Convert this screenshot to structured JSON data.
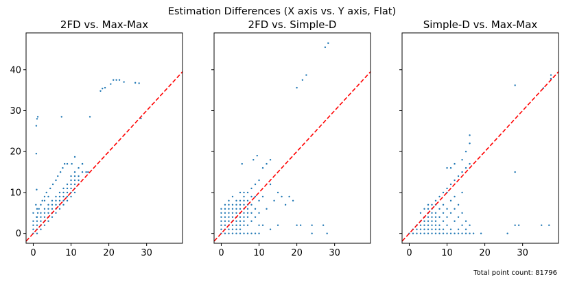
{
  "figure": {
    "suptitle": "Estimation Differences (X axis vs. Y axis, Flat)",
    "footnote": "Total point count: 81796",
    "colors": {
      "points": "#1f77b4",
      "diagonal": "#ff0000",
      "axes": "#000000"
    }
  },
  "chart_data": [
    {
      "type": "scatter",
      "title": "2FD vs. Max-Max",
      "xlim": [
        -1.9,
        39.5
      ],
      "ylim": [
        -2.4,
        49.0
      ],
      "xticks": [
        0,
        10,
        20,
        30
      ],
      "yticks": [
        0,
        10,
        20,
        30,
        40
      ],
      "show_y_tick_labels": true,
      "reference_line": "y = x (dashed)",
      "points": [
        [
          0,
          0
        ],
        [
          0,
          1
        ],
        [
          0,
          2
        ],
        [
          0,
          3
        ],
        [
          1,
          0
        ],
        [
          1,
          1
        ],
        [
          1,
          2
        ],
        [
          1,
          3
        ],
        [
          1,
          4
        ],
        [
          2,
          1
        ],
        [
          2,
          2
        ],
        [
          2,
          3
        ],
        [
          2,
          4
        ],
        [
          2,
          5
        ],
        [
          3,
          2
        ],
        [
          3,
          3
        ],
        [
          3,
          4
        ],
        [
          3,
          5
        ],
        [
          3,
          6
        ],
        [
          4,
          3
        ],
        [
          4,
          4
        ],
        [
          4,
          5
        ],
        [
          4,
          6
        ],
        [
          4,
          7
        ],
        [
          5,
          4
        ],
        [
          5,
          5
        ],
        [
          5,
          6
        ],
        [
          5,
          7
        ],
        [
          5,
          8
        ],
        [
          6,
          5
        ],
        [
          6,
          6
        ],
        [
          6,
          7
        ],
        [
          6,
          8
        ],
        [
          6,
          9
        ],
        [
          7,
          6
        ],
        [
          7,
          7
        ],
        [
          7,
          8
        ],
        [
          7,
          9
        ],
        [
          7,
          10
        ],
        [
          8,
          7
        ],
        [
          8,
          8
        ],
        [
          8,
          9
        ],
        [
          8,
          10
        ],
        [
          8,
          11
        ],
        [
          9,
          8
        ],
        [
          9,
          9
        ],
        [
          9,
          10
        ],
        [
          9,
          11
        ],
        [
          9,
          12
        ],
        [
          10,
          9
        ],
        [
          10,
          10
        ],
        [
          10,
          11
        ],
        [
          10,
          12
        ],
        [
          10,
          13
        ],
        [
          10,
          14
        ],
        [
          11,
          10
        ],
        [
          11,
          11
        ],
        [
          11,
          12
        ],
        [
          11,
          13
        ],
        [
          11,
          14
        ],
        [
          11,
          15
        ],
        [
          12,
          12
        ],
        [
          12,
          13
        ],
        [
          12,
          14
        ],
        [
          12,
          16
        ],
        [
          13,
          15
        ],
        [
          13,
          17
        ],
        [
          14,
          15
        ],
        [
          0.9,
          4
        ],
        [
          1.2,
          5
        ],
        [
          1.5,
          6
        ],
        [
          0.7,
          7
        ],
        [
          2.4,
          8
        ],
        [
          3.0,
          9
        ],
        [
          3.5,
          10
        ],
        [
          0.9,
          10.7
        ],
        [
          4.5,
          11
        ],
        [
          5.2,
          12
        ],
        [
          6.0,
          13
        ],
        [
          6.5,
          14
        ],
        [
          7.2,
          15
        ],
        [
          7.8,
          16
        ],
        [
          8.3,
          17
        ],
        [
          9.0,
          17
        ],
        [
          10.2,
          17
        ],
        [
          11.0,
          18.7
        ],
        [
          13.0,
          17
        ],
        [
          14.5,
          15
        ],
        [
          0.8,
          19.5
        ],
        [
          0.8,
          26.3
        ],
        [
          1.0,
          28.0
        ],
        [
          1.2,
          28.5
        ],
        [
          7.5,
          28.5
        ],
        [
          15.0,
          28.5
        ],
        [
          17.8,
          34.8
        ],
        [
          18.3,
          35.4
        ],
        [
          19.0,
          35.6
        ],
        [
          20.5,
          36.5
        ],
        [
          21.2,
          37.5
        ],
        [
          22.0,
          37.5
        ],
        [
          22.8,
          37.5
        ],
        [
          24.0,
          37.0
        ],
        [
          27.0,
          36.8
        ],
        [
          28.0,
          36.7
        ],
        [
          28.5,
          28.1
        ],
        [
          0,
          5
        ],
        [
          1,
          6
        ],
        [
          2,
          7
        ],
        [
          3,
          8
        ],
        [
          4,
          9
        ]
      ]
    },
    {
      "type": "scatter",
      "title": "2FD vs. Simple-D",
      "xlim": [
        -1.9,
        39.5
      ],
      "ylim": [
        -2.4,
        49.0
      ],
      "xticks": [
        0,
        10,
        20,
        30
      ],
      "yticks": [
        0,
        10,
        20,
        30,
        40
      ],
      "show_y_tick_labels": false,
      "reference_line": "y = x (dashed)",
      "points": [
        [
          0,
          0
        ],
        [
          0,
          1
        ],
        [
          0,
          2
        ],
        [
          0,
          3
        ],
        [
          0,
          4
        ],
        [
          0,
          5
        ],
        [
          1,
          0
        ],
        [
          1,
          1
        ],
        [
          1,
          2
        ],
        [
          1,
          3
        ],
        [
          1,
          4
        ],
        [
          1,
          5
        ],
        [
          1,
          6
        ],
        [
          2,
          0
        ],
        [
          2,
          1
        ],
        [
          2,
          2
        ],
        [
          2,
          3
        ],
        [
          2,
          4
        ],
        [
          2,
          5
        ],
        [
          2,
          6
        ],
        [
          2,
          7
        ],
        [
          3,
          0
        ],
        [
          3,
          1
        ],
        [
          3,
          2
        ],
        [
          3,
          3
        ],
        [
          3,
          4
        ],
        [
          3,
          5
        ],
        [
          3,
          6
        ],
        [
          3,
          7
        ],
        [
          4,
          0
        ],
        [
          4,
          1
        ],
        [
          4,
          2
        ],
        [
          4,
          3
        ],
        [
          4,
          4
        ],
        [
          4,
          5
        ],
        [
          4,
          6
        ],
        [
          4,
          7
        ],
        [
          4,
          8
        ],
        [
          5,
          0
        ],
        [
          5,
          1
        ],
        [
          5,
          2
        ],
        [
          5,
          3
        ],
        [
          5,
          4
        ],
        [
          5,
          5
        ],
        [
          5,
          6
        ],
        [
          5,
          7
        ],
        [
          5,
          8
        ],
        [
          6,
          0
        ],
        [
          6,
          2
        ],
        [
          6,
          3
        ],
        [
          6,
          4
        ],
        [
          6,
          5
        ],
        [
          6,
          6
        ],
        [
          6,
          7
        ],
        [
          6,
          8
        ],
        [
          6,
          9
        ],
        [
          7,
          0
        ],
        [
          7,
          2
        ],
        [
          7,
          4
        ],
        [
          7,
          5
        ],
        [
          7,
          6
        ],
        [
          7,
          7
        ],
        [
          7,
          8
        ],
        [
          7,
          10
        ],
        [
          8,
          0
        ],
        [
          8,
          3
        ],
        [
          8,
          5
        ],
        [
          8,
          7
        ],
        [
          8,
          9
        ],
        [
          8,
          11
        ],
        [
          9,
          0
        ],
        [
          9,
          4
        ],
        [
          9,
          6
        ],
        [
          9,
          9
        ],
        [
          9,
          12
        ],
        [
          10,
          0
        ],
        [
          10,
          2
        ],
        [
          10,
          5
        ],
        [
          10,
          8
        ],
        [
          10,
          13
        ],
        [
          11,
          2
        ],
        [
          11,
          9
        ],
        [
          11,
          16
        ],
        [
          12,
          6
        ],
        [
          12,
          17
        ],
        [
          13,
          1
        ],
        [
          13,
          12
        ],
        [
          13,
          18
        ],
        [
          14,
          8
        ],
        [
          15,
          2
        ],
        [
          15,
          10
        ],
        [
          16,
          9
        ],
        [
          17,
          7
        ],
        [
          18,
          9
        ],
        [
          19,
          8
        ],
        [
          20,
          2
        ],
        [
          21,
          2
        ],
        [
          24,
          0
        ],
        [
          24,
          2
        ],
        [
          27,
          2
        ],
        [
          28,
          0
        ],
        [
          20.0,
          35.6
        ],
        [
          21.5,
          37.5
        ],
        [
          22.5,
          38.7
        ],
        [
          27.5,
          45.5
        ],
        [
          28.3,
          46.5
        ],
        [
          5.5,
          17
        ],
        [
          8.5,
          18
        ],
        [
          9.5,
          19
        ],
        [
          0,
          6
        ],
        [
          1,
          7
        ],
        [
          2,
          8
        ],
        [
          3,
          9
        ],
        [
          5,
          10
        ],
        [
          6,
          10
        ]
      ]
    },
    {
      "type": "scatter",
      "title": "Simple-D vs. Max-Max",
      "xlim": [
        -1.9,
        39.5
      ],
      "ylim": [
        -2.4,
        49.0
      ],
      "xticks": [
        0,
        10,
        20,
        30
      ],
      "yticks": [
        0,
        10,
        20,
        30,
        40
      ],
      "show_y_tick_labels": false,
      "reference_line": "y = x (dashed)",
      "points": [
        [
          0,
          0
        ],
        [
          1,
          0
        ],
        [
          1,
          1
        ],
        [
          2,
          0
        ],
        [
          2,
          1
        ],
        [
          2,
          2
        ],
        [
          3,
          0
        ],
        [
          3,
          1
        ],
        [
          3,
          2
        ],
        [
          3,
          3
        ],
        [
          4,
          0
        ],
        [
          4,
          1
        ],
        [
          4,
          2
        ],
        [
          4,
          3
        ],
        [
          4,
          4
        ],
        [
          5,
          0
        ],
        [
          5,
          1
        ],
        [
          5,
          2
        ],
        [
          5,
          3
        ],
        [
          5,
          4
        ],
        [
          5,
          5
        ],
        [
          5,
          6
        ],
        [
          6,
          0
        ],
        [
          6,
          1
        ],
        [
          6,
          2
        ],
        [
          6,
          3
        ],
        [
          6,
          4
        ],
        [
          6,
          5
        ],
        [
          6,
          6
        ],
        [
          6,
          7
        ],
        [
          7,
          0
        ],
        [
          7,
          1
        ],
        [
          7,
          2
        ],
        [
          7,
          3
        ],
        [
          7,
          4
        ],
        [
          7,
          5
        ],
        [
          7,
          7
        ],
        [
          7,
          8
        ],
        [
          8,
          0
        ],
        [
          8,
          1
        ],
        [
          8,
          2
        ],
        [
          8,
          4
        ],
        [
          8,
          6
        ],
        [
          8,
          9
        ],
        [
          9,
          0
        ],
        [
          9,
          1
        ],
        [
          9,
          3
        ],
        [
          9,
          5
        ],
        [
          9,
          7
        ],
        [
          9,
          10
        ],
        [
          10,
          0
        ],
        [
          10,
          2
        ],
        [
          10,
          4
        ],
        [
          10,
          6
        ],
        [
          10,
          10
        ],
        [
          10,
          11
        ],
        [
          11,
          0
        ],
        [
          11,
          1
        ],
        [
          11,
          5
        ],
        [
          11,
          8
        ],
        [
          11,
          12
        ],
        [
          12,
          0
        ],
        [
          12,
          3
        ],
        [
          12,
          6
        ],
        [
          12,
          9
        ],
        [
          12,
          13
        ],
        [
          13,
          0
        ],
        [
          13,
          1
        ],
        [
          13,
          4
        ],
        [
          13,
          7
        ],
        [
          13,
          14
        ],
        [
          14,
          0
        ],
        [
          14,
          2
        ],
        [
          14,
          5
        ],
        [
          14,
          10
        ],
        [
          14,
          15
        ],
        [
          15,
          0
        ],
        [
          15,
          1
        ],
        [
          15,
          3
        ],
        [
          15,
          16
        ],
        [
          16,
          0
        ],
        [
          16,
          2
        ],
        [
          16,
          17
        ],
        [
          17,
          0
        ],
        [
          19,
          0
        ],
        [
          26,
          0
        ],
        [
          28,
          2
        ],
        [
          29,
          2
        ],
        [
          35,
          2
        ],
        [
          37,
          2
        ],
        [
          28,
          15
        ],
        [
          28,
          36.2
        ],
        [
          35.5,
          35.5
        ],
        [
          37.5,
          37.8
        ],
        [
          37.5,
          38.7
        ],
        [
          10,
          16
        ],
        [
          11,
          16
        ],
        [
          12,
          17
        ],
        [
          14,
          18
        ],
        [
          15,
          20
        ],
        [
          16,
          22
        ],
        [
          16,
          24
        ],
        [
          3,
          5
        ],
        [
          4,
          6
        ],
        [
          5,
          7
        ]
      ]
    }
  ]
}
